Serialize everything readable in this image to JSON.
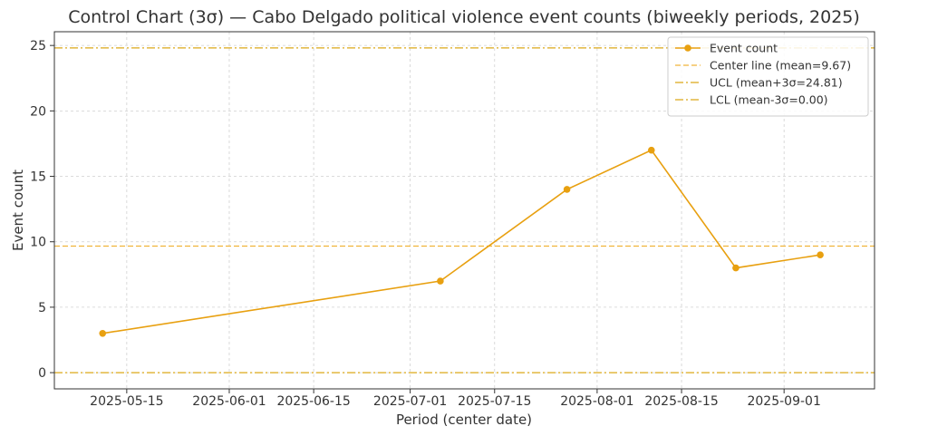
{
  "chart_data": {
    "type": "line",
    "title": "Control Chart (3σ) — Cabo Delgado political violence event counts (biweekly periods, 2025)",
    "xlabel": "Period (center date)",
    "ylabel": "Event count",
    "x_ticks": [
      "2025-05-15",
      "2025-06-01",
      "2025-06-15",
      "2025-07-01",
      "2025-07-15",
      "2025-08-01",
      "2025-08-15",
      "2025-09-01"
    ],
    "y_ticks": [
      0,
      5,
      10,
      15,
      20,
      25
    ],
    "xlim": [
      "2025-05-03",
      "2025-09-16"
    ],
    "ylim": [
      -1.24,
      26.05
    ],
    "grid": true,
    "legend_position": "top-right",
    "series": [
      {
        "name": "Event count",
        "x": [
          "2025-05-11",
          "2025-07-06",
          "2025-07-27",
          "2025-08-10",
          "2025-08-24",
          "2025-09-07"
        ],
        "values": [
          3,
          7,
          14,
          17,
          8,
          9
        ]
      }
    ],
    "control_lines": [
      {
        "name": "Center line (mean=9.67)",
        "value": 9.67,
        "style": "dashed"
      },
      {
        "name": "UCL (mean+3σ=24.81)",
        "value": 24.81,
        "style": "dashdot"
      },
      {
        "name": "LCL (mean-3σ=0.00)",
        "value": 0.0,
        "style": "dashdot"
      }
    ],
    "colors": {
      "series": "#e8a010",
      "center": "#f0b43a",
      "control": "#dca818",
      "grid": "#d0d0d0",
      "axis": "#333333"
    }
  }
}
